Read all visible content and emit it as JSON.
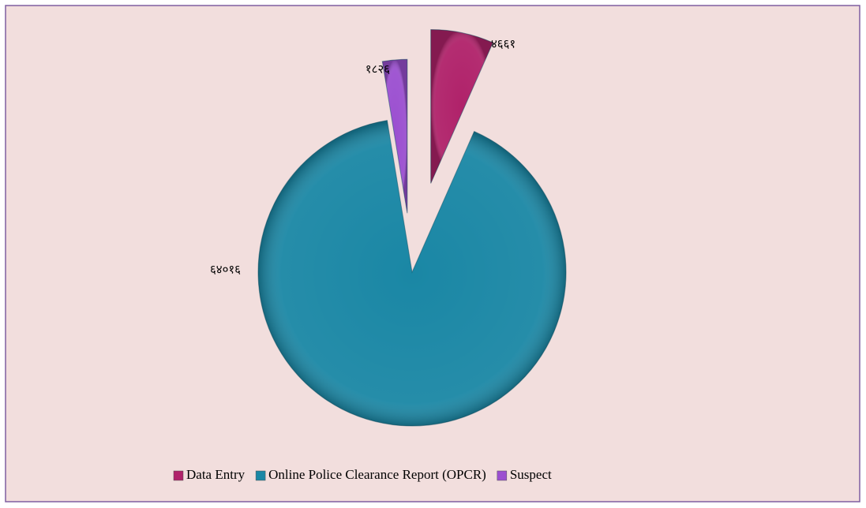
{
  "chart_data": {
    "type": "pie",
    "categories": [
      "Data Entry",
      "Online Police Clearance Report (OPCR)",
      "Suspect"
    ],
    "values": [
      4661,
      64016,
      1826
    ],
    "value_labels": [
      "४६६१",
      "६४०१६",
      "१८२६"
    ],
    "colors": [
      "#b0226a",
      "#1a87a5",
      "#9b4fd0"
    ],
    "legend": "bottom"
  }
}
